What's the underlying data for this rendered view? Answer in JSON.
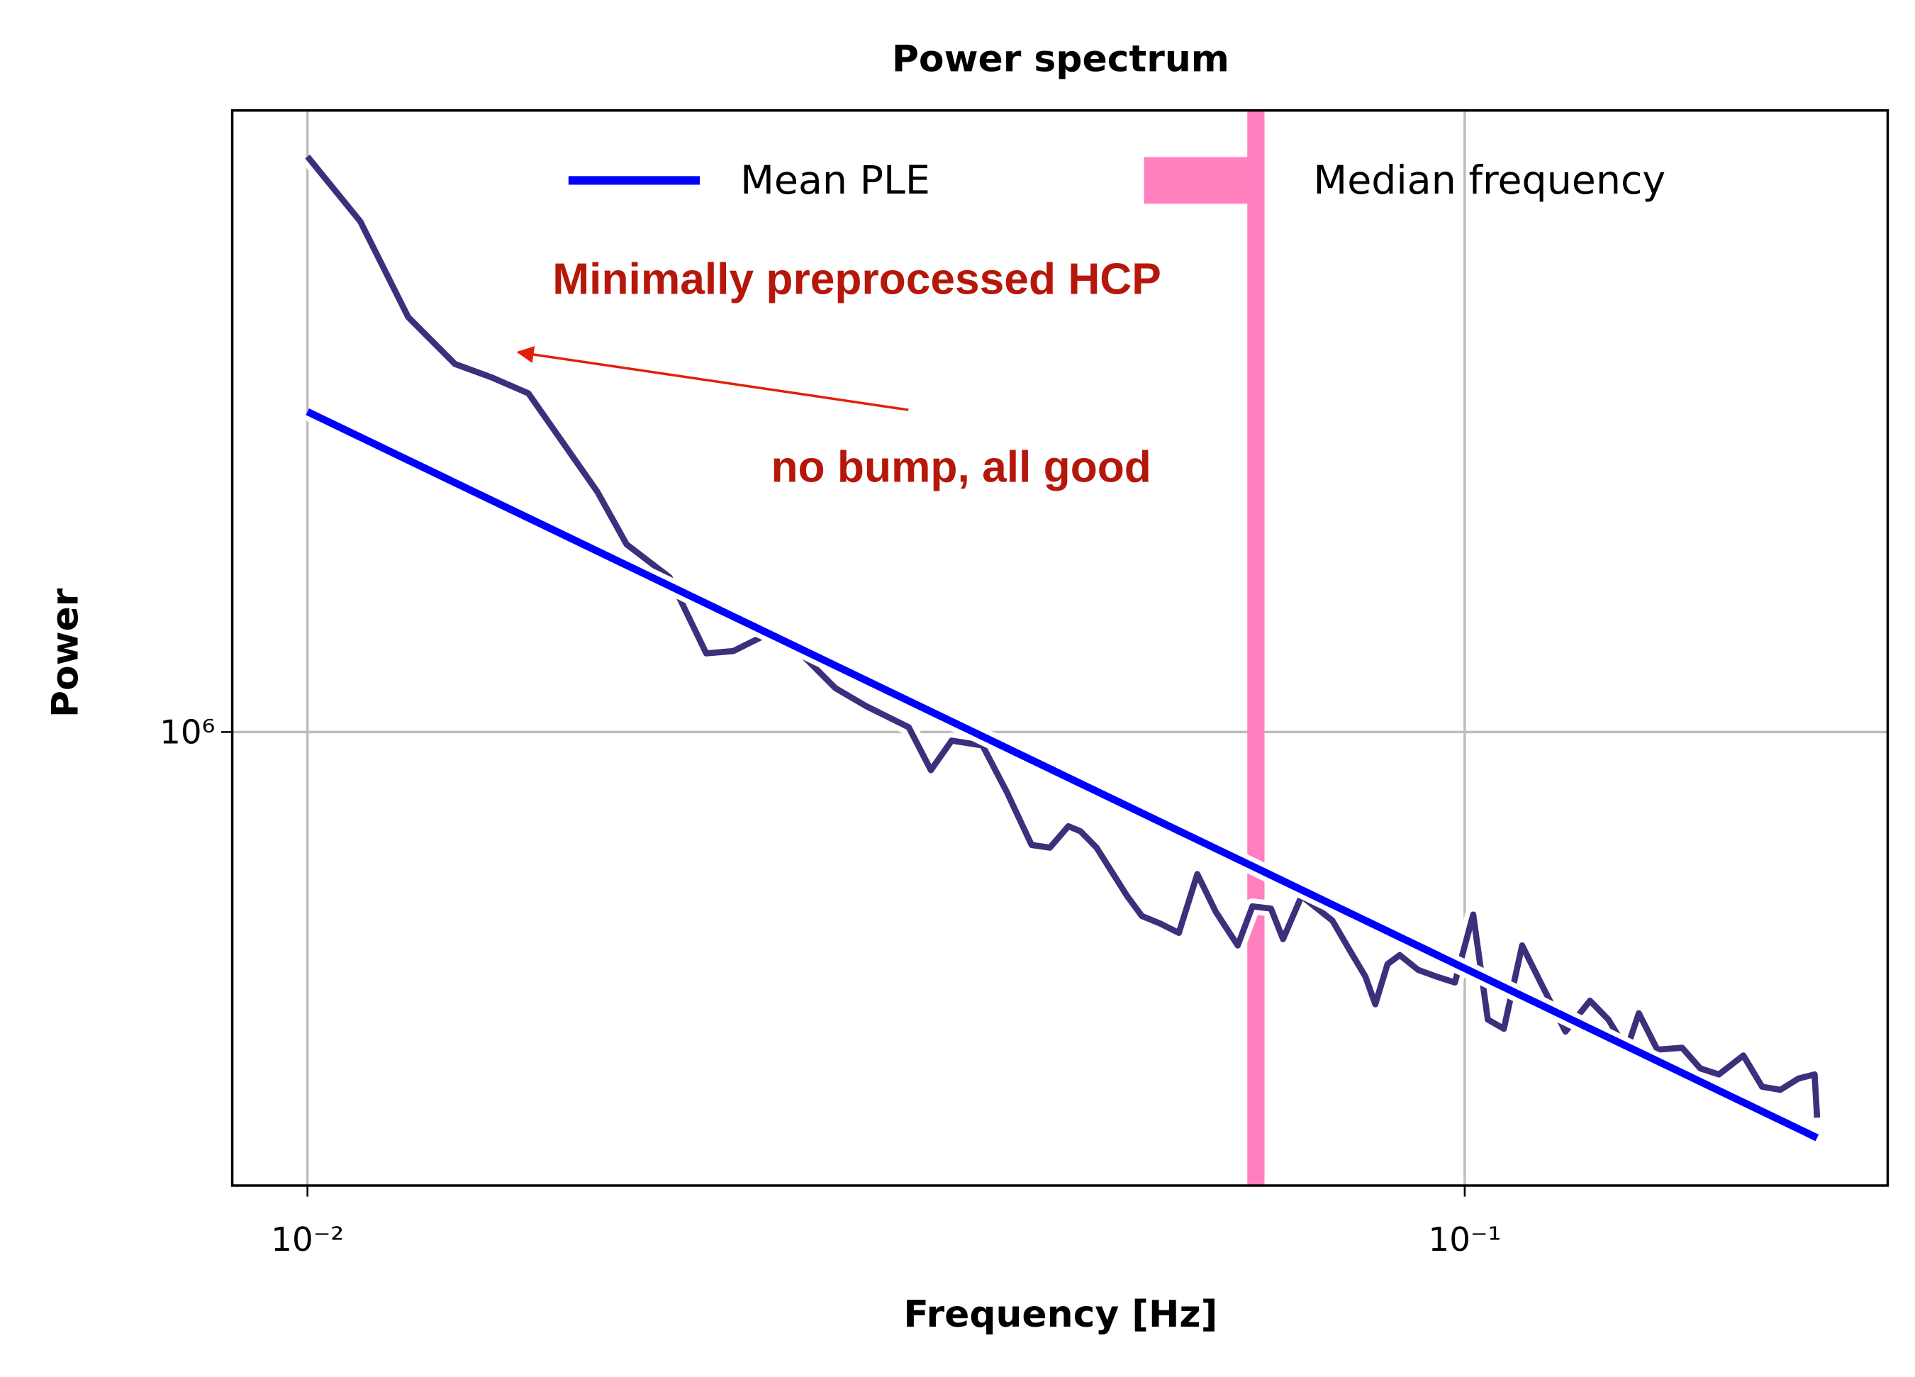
{
  "chart_data": {
    "type": "line",
    "title": "Power spectrum",
    "x_label": "Frequency [Hz]",
    "y_label": "Power",
    "log_x": true,
    "log_y": true,
    "grid": true,
    "legend": "upper right",
    "xlim": [
      0.00861,
      0.232
    ],
    "ylim": [
      427000,
      3210000
    ],
    "xticks": [
      {
        "value": 0.01,
        "label": "10⁻²"
      },
      {
        "value": 0.1,
        "label": "10⁻¹"
      }
    ],
    "yticks": [
      {
        "value": 1000000,
        "label": "10⁶"
      }
    ],
    "series": [
      {
        "name": "Minimally preprocessed HCP",
        "color": "#3d2f7c",
        "x": [
          0.01,
          0.01111,
          0.01222,
          0.01341,
          0.01443,
          0.01552,
          0.0178,
          0.01887,
          0.02055,
          0.02211,
          0.02333,
          0.02498,
          0.02688,
          0.02858,
          0.03038,
          0.03308,
          0.03457,
          0.03603,
          0.03831,
          0.04022,
          0.04224,
          0.04381,
          0.04545,
          0.04656,
          0.04807,
          0.05109,
          0.05261,
          0.05458,
          0.05662,
          0.05874,
          0.06092,
          0.06366,
          0.06555,
          0.06801,
          0.06966,
          0.07228,
          0.07685,
          0.0797,
          0.08207,
          0.0837,
          0.08576,
          0.08787,
          0.09114,
          0.09454,
          0.09806,
          0.1017,
          0.1047,
          0.1081,
          0.1121,
          0.1163,
          0.1222,
          0.1283,
          0.1331,
          0.138,
          0.1414,
          0.1467,
          0.1541,
          0.1598,
          0.1658,
          0.1741,
          0.1807,
          0.1874,
          0.1943,
          0.2006,
          0.2016
        ],
        "values": [
          2944000,
          2606000,
          2178000,
          1995000,
          1945000,
          1888000,
          1570000,
          1422000,
          1337000,
          1159000,
          1164000,
          1202000,
          1151000,
          1086000,
          1050000,
          1009000,
          931000,
          984000,
          975000,
          893000,
          809000,
          805000,
          838000,
          830000,
          805000,
          735000,
          708000,
          698000,
          686000,
          766000,
          714000,
          670000,
          721000,
          718000,
          678000,
          735000,
          702000,
          662000,
          632000,
          600000,
          647000,
          658000,
          640000,
          632000,
          625000,
          710000,
          583000,
          573000,
          670000,
          625000,
          570000,
          604000,
          583000,
          551000,
          590000,
          551000,
          553000,
          532000,
          526000,
          545000,
          514000,
          511000,
          522000,
          526000,
          485000
        ]
      },
      {
        "name": "Mean PLE",
        "color": "#0000ff",
        "x": [
          0.01,
          0.2016
        ],
        "values": [
          1824000,
          467000
        ]
      }
    ],
    "vlines": [
      {
        "name": "Median frequency",
        "color": "#ff7fbf",
        "x": 0.066
      }
    ],
    "annotations": [
      "Minimally preprocessed HCP",
      "no bump, all good"
    ]
  }
}
